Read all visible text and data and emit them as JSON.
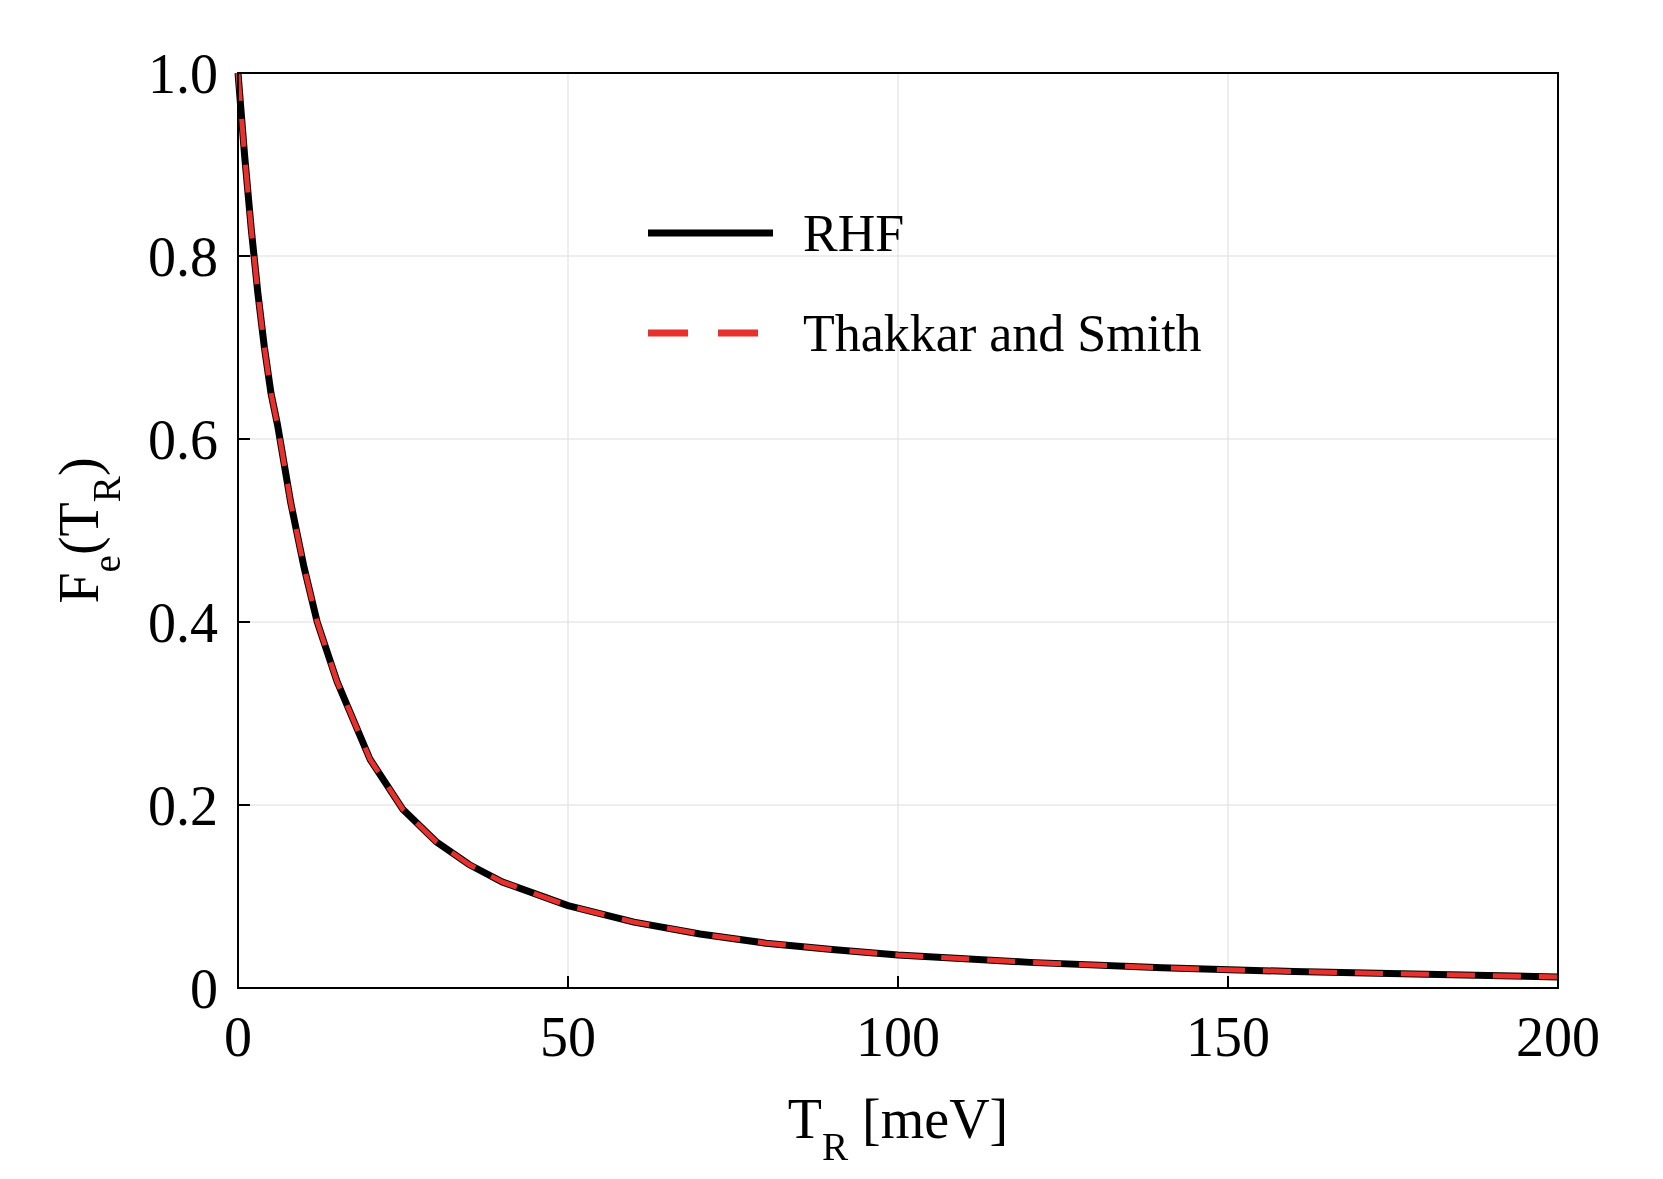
{
  "chart_data": {
    "type": "line",
    "xlabel": "T$_{R}$ [meV]",
    "ylabel": "F$_{e}$(T$_{R}$)",
    "x": [
      0,
      1,
      2,
      3,
      4,
      5,
      6,
      8,
      10,
      12,
      15,
      20,
      25,
      30,
      35,
      40,
      50,
      60,
      70,
      80,
      90,
      100,
      120,
      140,
      160,
      180,
      200
    ],
    "series": [
      {
        "name": "RHF",
        "color": "#000000",
        "line_style": "solid",
        "values": [
          1.0,
          0.91,
          0.83,
          0.76,
          0.7,
          0.65,
          0.615,
          0.53,
          0.46,
          0.4,
          0.335,
          0.25,
          0.195,
          0.16,
          0.135,
          0.116,
          0.09,
          0.072,
          0.059,
          0.049,
          0.042,
          0.036,
          0.028,
          0.022,
          0.018,
          0.015,
          0.012
        ]
      },
      {
        "name": "Thakkar and Smith",
        "color": "#e8302c",
        "line_style": "dashed",
        "values": [
          1.0,
          0.91,
          0.83,
          0.76,
          0.7,
          0.65,
          0.615,
          0.53,
          0.46,
          0.4,
          0.335,
          0.25,
          0.195,
          0.16,
          0.135,
          0.116,
          0.09,
          0.072,
          0.059,
          0.049,
          0.042,
          0.036,
          0.028,
          0.022,
          0.018,
          0.015,
          0.012
        ]
      }
    ],
    "xlim": [
      0,
      200
    ],
    "xticks": [
      0,
      50,
      100,
      150,
      200
    ],
    "ylim": [
      0,
      1
    ],
    "yticks": [
      0,
      0.2,
      0.4,
      0.6,
      0.8,
      {
        "value": 1,
        "label": "1.0"
      }
    ],
    "grid": true,
    "legend": "top",
    "marker": "none"
  }
}
